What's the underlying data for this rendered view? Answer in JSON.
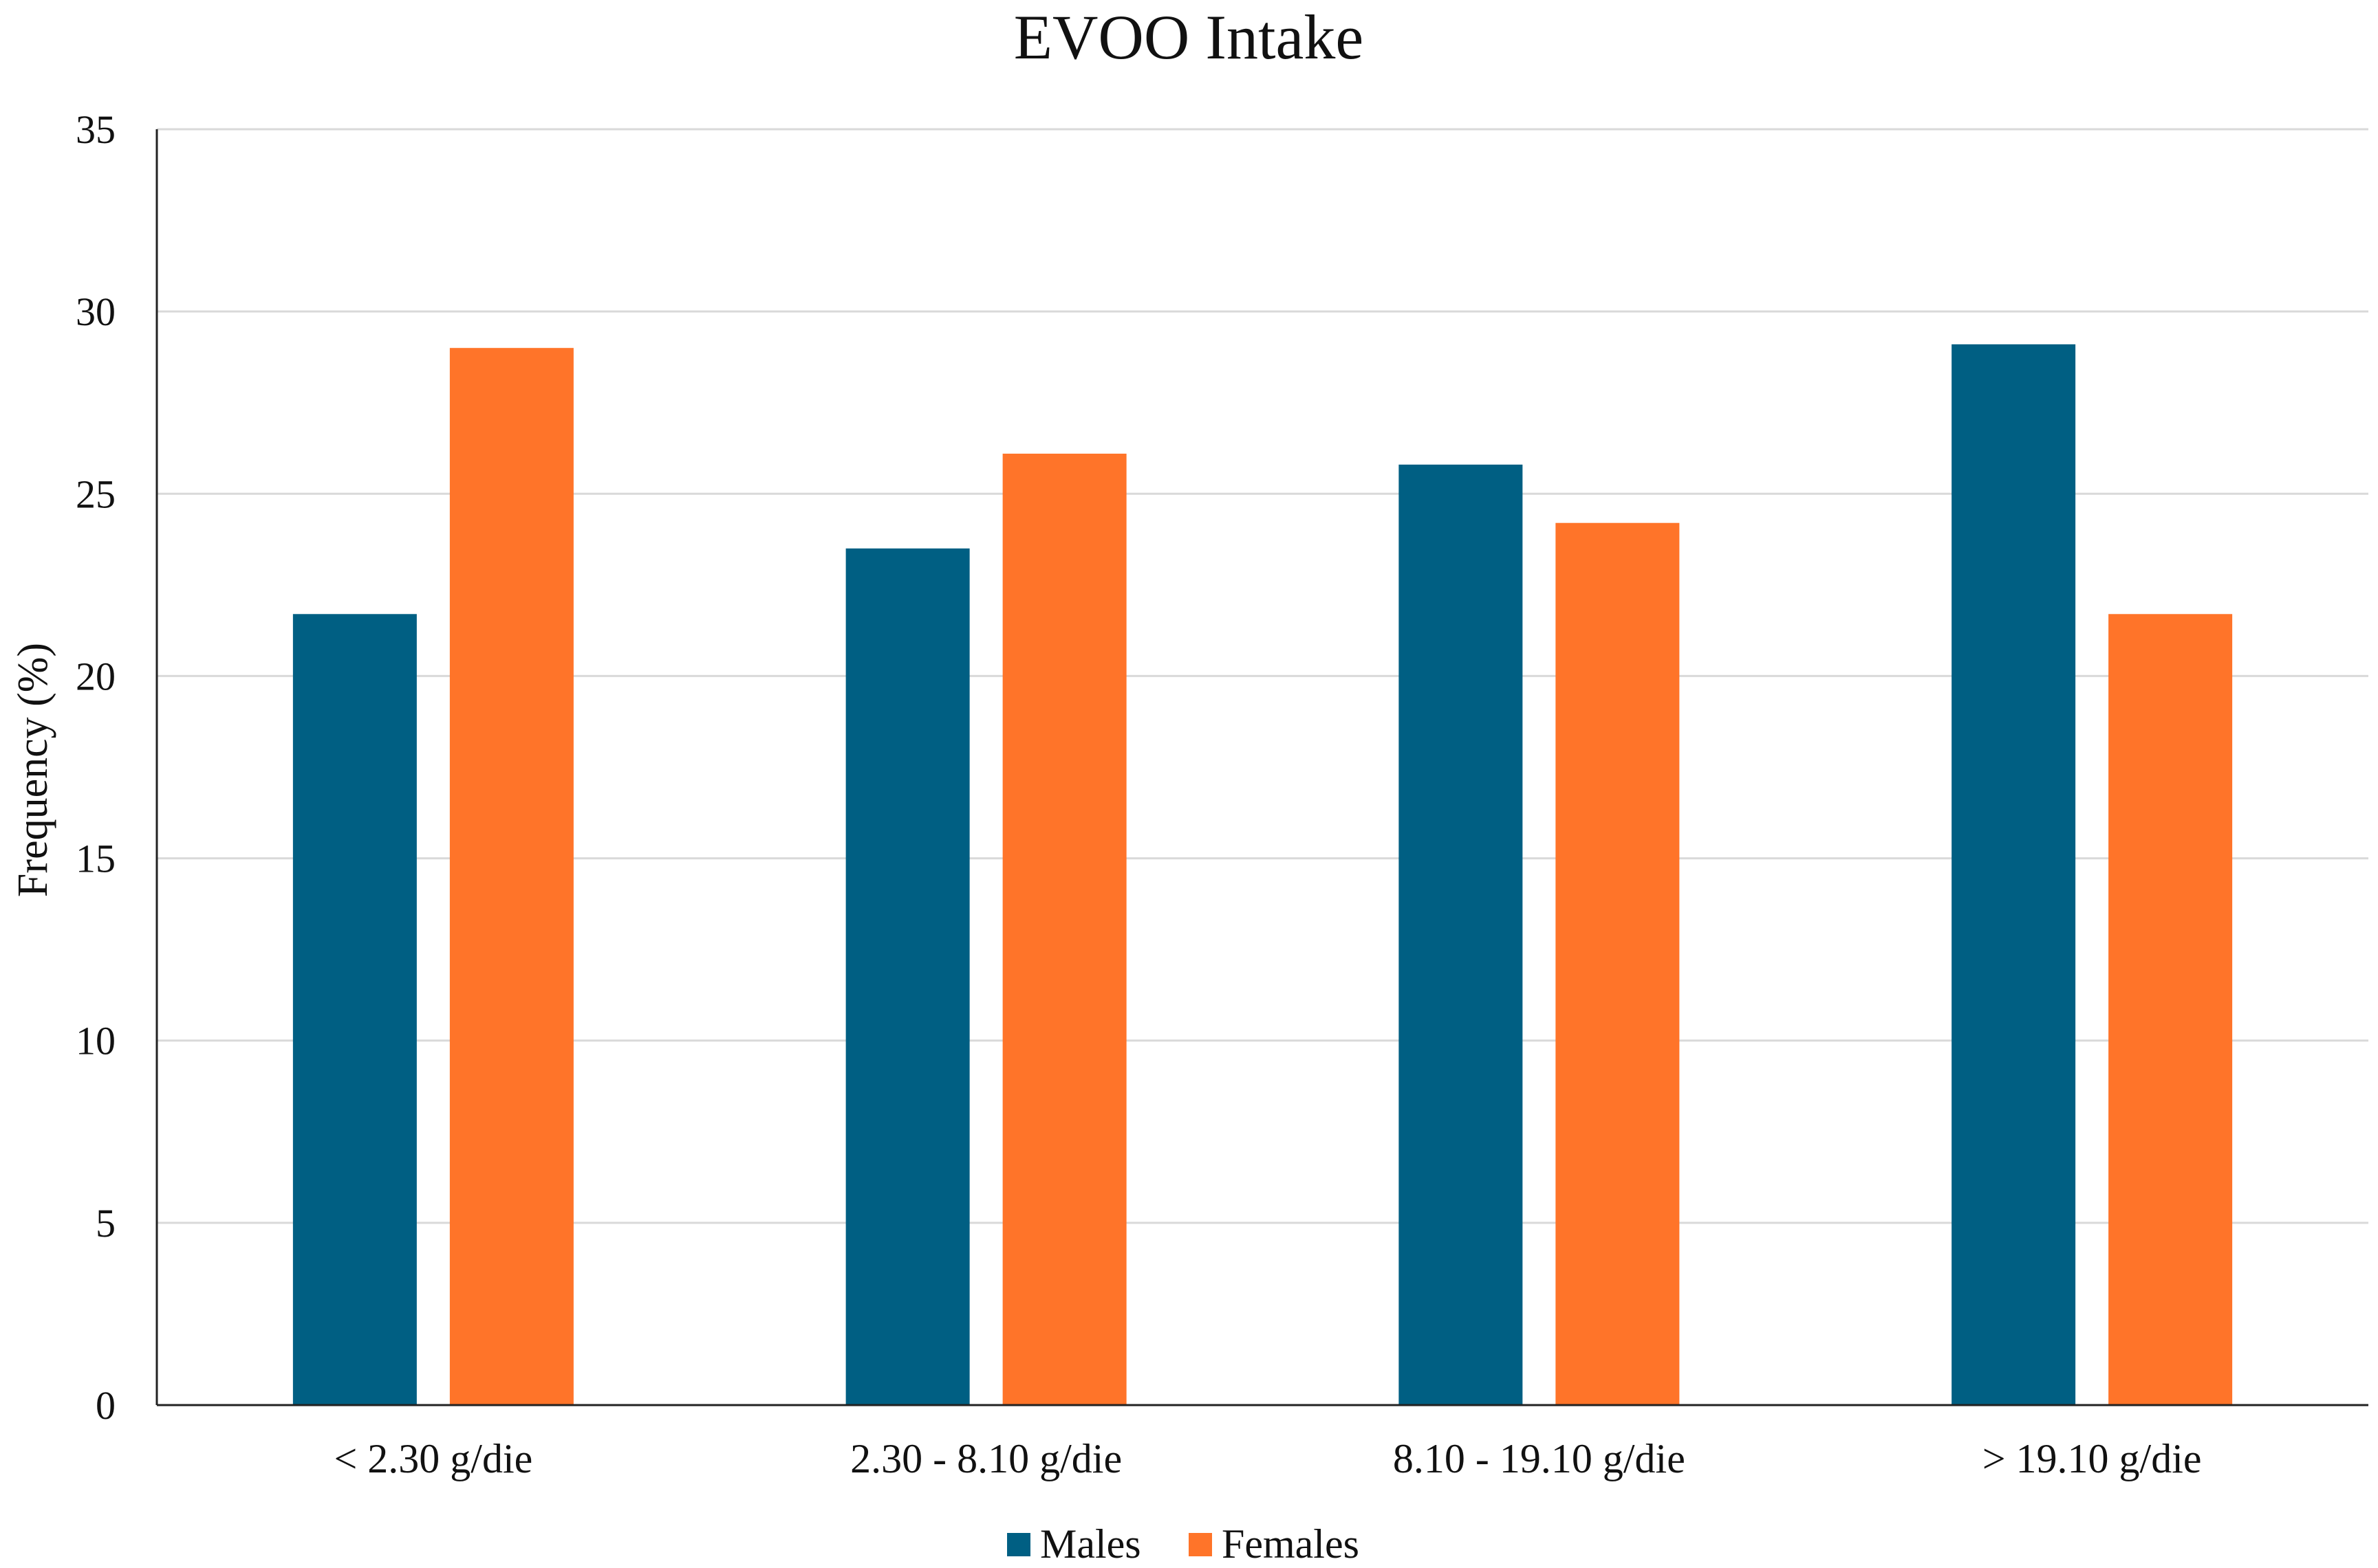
{
  "chart_data": {
    "type": "bar",
    "title": "EVOO Intake",
    "xlabel": "",
    "ylabel": "Frequency (%)",
    "ylim": [
      0,
      35
    ],
    "yticks": [
      0,
      5,
      10,
      15,
      20,
      25,
      30,
      35
    ],
    "grid": true,
    "legend_position": "bottom-center",
    "categories": [
      "< 2.30 g/die",
      "2.30 - 8.10 g/die",
      "8.10 - 19.10 g/die",
      "> 19.10 g/die"
    ],
    "series": [
      {
        "name": "Males",
        "color": "#005f83",
        "values": [
          21.7,
          23.5,
          25.8,
          29.1
        ]
      },
      {
        "name": "Females",
        "color": "#ff7429",
        "values": [
          29.0,
          26.1,
          24.2,
          21.7
        ]
      }
    ]
  }
}
